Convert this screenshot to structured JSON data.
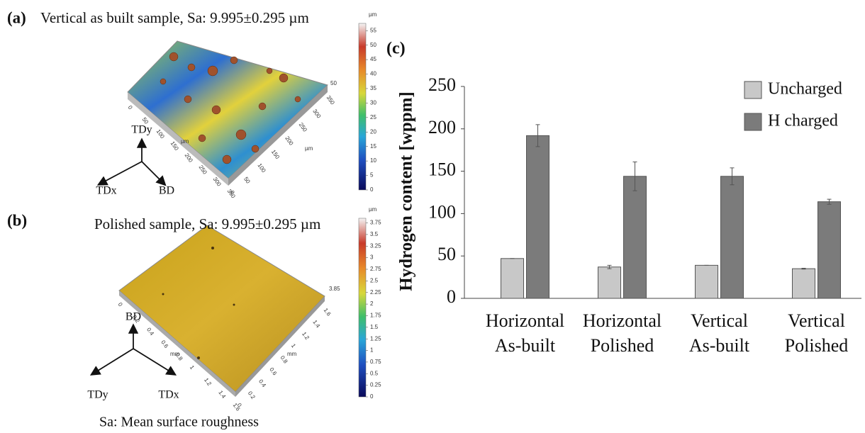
{
  "panels": [
    {
      "label": "(a)",
      "title": "Vertical as built sample, Sa: 9.995±0.295 µm",
      "unit": "µm",
      "colorbar_lim": [
        0,
        57.5
      ],
      "colorbar_ticks": [
        0,
        5,
        10,
        15,
        20,
        25,
        30,
        35,
        40,
        45,
        50,
        55
      ],
      "z_label": "50",
      "x_ticks": [
        "0",
        "50",
        "100",
        "150",
        "200",
        "250",
        "300",
        "350"
      ],
      "y_ticks": [
        "0",
        "50",
        "100",
        "150",
        "200",
        "250",
        "300",
        "350"
      ],
      "axis_unit": "µm",
      "directions": [
        "TDy",
        "TDx",
        "BD"
      ]
    },
    {
      "label": "(b)",
      "title": "Polished sample, Sa: 9.995±0.295 µm",
      "unit": "µm",
      "colorbar_lim": [
        0,
        3.85
      ],
      "colorbar_ticks": [
        0,
        0.25,
        0.5,
        0.75,
        1,
        1.25,
        1.5,
        1.75,
        2,
        2.25,
        2.5,
        2.75,
        3,
        3.25,
        3.5,
        3.75
      ],
      "z_label": "3.85",
      "x_ticks": [
        "0",
        "0.2",
        "0.4",
        "0.6",
        "0.8",
        "1",
        "1.2",
        "1.4",
        "1.6"
      ],
      "y_ticks": [
        "0",
        "0.2",
        "0.4",
        "0.6",
        "0.8",
        "1",
        "1.2",
        "1.4",
        "1.6"
      ],
      "axis_unit": "mm",
      "directions": [
        "BD",
        "TDy",
        "TDx"
      ]
    }
  ],
  "footnote": "Sa: Mean surface roughness",
  "chart_data": {
    "type": "bar",
    "label": "(c)",
    "y_label": "Hydrogen content [wppm]",
    "categories": [
      [
        "Horizontal",
        "As-built"
      ],
      [
        "Horizontal",
        "Polished"
      ],
      [
        "Vertical",
        "As-built"
      ],
      [
        "Vertical",
        "Polished"
      ]
    ],
    "series": [
      {
        "name": "Uncharged",
        "color": "#c8c8c8",
        "values": [
          47,
          37,
          39,
          35
        ],
        "errors": [
          0,
          2,
          0,
          0.5
        ]
      },
      {
        "name": "H charged",
        "color": "#7b7b7b",
        "values": [
          192,
          144,
          144,
          114
        ],
        "errors": [
          13,
          17,
          10,
          3
        ]
      }
    ],
    "ylim": [
      0,
      250
    ],
    "yticks": [
      0,
      50,
      100,
      150,
      200,
      250
    ],
    "legend": "top-right"
  }
}
